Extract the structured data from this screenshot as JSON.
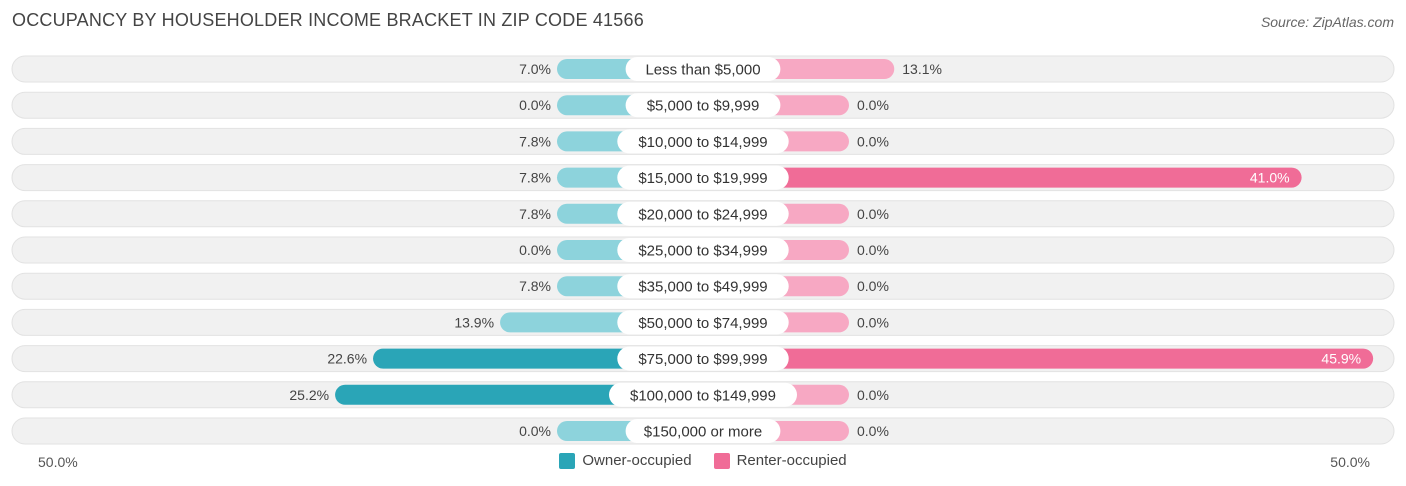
{
  "title": "OCCUPANCY BY HOUSEHOLDER INCOME BRACKET IN ZIP CODE 41566",
  "source": "Source: ZipAtlas.com",
  "colors": {
    "owner_strong": "#2aa5b7",
    "owner_light": "#8dd3dc",
    "renter_strong": "#f06c97",
    "renter_light": "#f7a8c3",
    "track": "#f1f1f1"
  },
  "axis": {
    "left_label": "50.0%",
    "right_label": "50.0%"
  },
  "legend": {
    "owner": "Owner-occupied",
    "renter": "Renter-occupied"
  },
  "chart_data": {
    "type": "bar",
    "orientation": "diverging-horizontal",
    "xlim": [
      -50,
      50
    ],
    "categories": [
      "Less than $5,000",
      "$5,000 to $9,999",
      "$10,000 to $14,999",
      "$15,000 to $19,999",
      "$20,000 to $24,999",
      "$25,000 to $34,999",
      "$35,000 to $49,999",
      "$50,000 to $74,999",
      "$75,000 to $99,999",
      "$100,000 to $149,999",
      "$150,000 or more"
    ],
    "series": [
      {
        "name": "Owner-occupied",
        "values": [
          7.0,
          0.0,
          7.8,
          7.8,
          7.8,
          0.0,
          7.8,
          13.9,
          22.6,
          25.2,
          0.0
        ],
        "labels": [
          "7.0%",
          "0.0%",
          "7.8%",
          "7.8%",
          "7.8%",
          "0.0%",
          "7.8%",
          "13.9%",
          "22.6%",
          "25.2%",
          "0.0%"
        ]
      },
      {
        "name": "Renter-occupied",
        "values": [
          13.1,
          0.0,
          0.0,
          41.0,
          0.0,
          0.0,
          0.0,
          0.0,
          45.9,
          0.0,
          0.0
        ],
        "labels": [
          "13.1%",
          "0.0%",
          "0.0%",
          "41.0%",
          "0.0%",
          "0.0%",
          "0.0%",
          "0.0%",
          "45.9%",
          "0.0%",
          "0.0%"
        ]
      }
    ]
  }
}
